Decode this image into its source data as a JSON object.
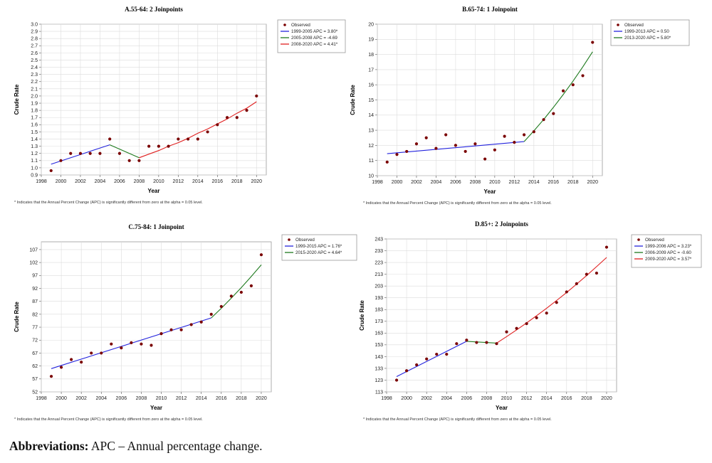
{
  "chart_data": [
    {
      "type": "line",
      "title": "A.55-64: 2 Joinpoints",
      "xlabel": "Year",
      "ylabel": "Crude Rate",
      "xlim": [
        1998,
        2021
      ],
      "ylim": [
        0.9,
        3.0
      ],
      "xticks": [
        1998,
        2000,
        2002,
        2004,
        2006,
        2008,
        2010,
        2012,
        2014,
        2016,
        2018,
        2020
      ],
      "yticks": [
        0.9,
        1,
        1.1,
        1.2,
        1.3,
        1.4,
        1.5,
        1.6,
        1.7,
        1.8,
        1.9,
        2,
        2.1,
        2.2,
        2.3,
        2.4,
        2.5,
        2.6,
        2.7,
        2.8,
        2.9,
        3
      ],
      "ytick_decimals": 1,
      "grid": true,
      "legend_position": "right",
      "note": "* Indicates that the Annual Percent Change (APC) is significantly different from zero at the alpha = 0.05 level.",
      "observed": {
        "name": "Observed",
        "color": "#7a0000",
        "x": [
          1999,
          2000,
          2001,
          2002,
          2003,
          2004,
          2005,
          2006,
          2007,
          2008,
          2009,
          2010,
          2011,
          2012,
          2013,
          2014,
          2015,
          2016,
          2017,
          2018,
          2019,
          2020
        ],
        "y": [
          0.96,
          1.1,
          1.2,
          1.2,
          1.2,
          1.2,
          1.4,
          1.2,
          1.1,
          1.1,
          1.3,
          1.3,
          1.3,
          1.4,
          1.4,
          1.4,
          1.5,
          1.6,
          1.7,
          1.7,
          1.8,
          2.0
        ]
      },
      "series": [
        {
          "name": "1999-2005 APC = 3.80*",
          "color": "#2222dd",
          "x": [
            1999,
            2005
          ],
          "y": [
            1.05,
            1.32
          ]
        },
        {
          "name": "2005-2008 APC = -4.69",
          "color": "#1e7a1e",
          "x": [
            2005,
            2008
          ],
          "y": [
            1.32,
            1.14
          ]
        },
        {
          "name": "2008-2020 APC = 4.41*",
          "color": "#e02020",
          "x": [
            2008,
            2009,
            2010,
            2011,
            2012,
            2013,
            2014,
            2015,
            2016,
            2017,
            2018,
            2019,
            2020
          ],
          "y": [
            1.14,
            1.19,
            1.24,
            1.3,
            1.35,
            1.41,
            1.48,
            1.54,
            1.61,
            1.68,
            1.76,
            1.83,
            1.92
          ]
        }
      ]
    },
    {
      "type": "line",
      "title": "B.65-74: 1 Joinpoint",
      "xlabel": "Year",
      "ylabel": "Crude Rate",
      "xlim": [
        1998,
        2021
      ],
      "ylim": [
        10,
        20
      ],
      "xticks": [
        1998,
        2000,
        2002,
        2004,
        2006,
        2008,
        2010,
        2012,
        2014,
        2016,
        2018,
        2020
      ],
      "yticks": [
        10,
        11,
        12,
        13,
        14,
        15,
        16,
        17,
        18,
        19,
        20
      ],
      "ytick_decimals": 0,
      "grid": true,
      "legend_position": "right",
      "note": "* Indicates that the Annual Percent Change (APC) is significantly different from zero at the alpha = 0.05 level.",
      "observed": {
        "name": "Observed",
        "color": "#7a0000",
        "x": [
          1999,
          2000,
          2001,
          2002,
          2003,
          2004,
          2005,
          2006,
          2007,
          2008,
          2009,
          2010,
          2011,
          2012,
          2013,
          2014,
          2015,
          2016,
          2017,
          2018,
          2019,
          2020
        ],
        "y": [
          10.9,
          11.4,
          11.6,
          12.1,
          12.5,
          11.8,
          12.7,
          12.0,
          11.6,
          12.1,
          11.1,
          11.7,
          12.6,
          12.2,
          12.7,
          12.9,
          13.7,
          14.1,
          15.6,
          16.0,
          16.6,
          18.8
        ]
      },
      "series": [
        {
          "name": "1999-2013 APC = 0.50",
          "color": "#2222dd",
          "x": [
            1999,
            2013
          ],
          "y": [
            11.45,
            12.25
          ]
        },
        {
          "name": "2013-2020 APC = 5.80*",
          "color": "#1e7a1e",
          "x": [
            2013,
            2014,
            2015,
            2016,
            2017,
            2018,
            2019,
            2020
          ],
          "y": [
            12.25,
            12.96,
            13.71,
            14.51,
            15.35,
            16.24,
            17.18,
            18.18
          ]
        }
      ]
    },
    {
      "type": "line",
      "title": "C.75-84: 1 Joinpoint",
      "xlabel": "Year",
      "ylabel": "Crude Rate",
      "xlim": [
        1998,
        2021
      ],
      "ylim": [
        52,
        110
      ],
      "xticks": [
        1998,
        2000,
        2002,
        2004,
        2006,
        2008,
        2010,
        2012,
        2014,
        2016,
        2018,
        2020
      ],
      "yticks": [
        52,
        57,
        62,
        67,
        72,
        77,
        82,
        87,
        92,
        97,
        102,
        107
      ],
      "ytick_decimals": 0,
      "grid": true,
      "legend_position": "right",
      "note": "* Indicates that the Annual Percent Change (APC) is significantly different from zero at the alpha = 0.05 level.",
      "observed": {
        "name": "Observed",
        "color": "#7a0000",
        "x": [
          1999,
          2000,
          2001,
          2002,
          2003,
          2004,
          2005,
          2006,
          2007,
          2008,
          2009,
          2010,
          2011,
          2012,
          2013,
          2014,
          2015,
          2016,
          2017,
          2018,
          2019,
          2020
        ],
        "y": [
          58,
          61.5,
          64.5,
          63.5,
          67,
          67,
          70.5,
          69,
          71,
          70.5,
          70,
          74.5,
          76,
          76,
          78,
          79,
          82,
          85,
          89,
          90.5,
          93,
          105
        ]
      },
      "series": [
        {
          "name": "1999-2015 APC = 1.76*",
          "color": "#2222dd",
          "x": [
            1999,
            2015
          ],
          "y": [
            61,
            80.6
          ]
        },
        {
          "name": "2015-2020 APC = 4.64*",
          "color": "#1e7a1e",
          "x": [
            2015,
            2016,
            2017,
            2018,
            2019,
            2020
          ],
          "y": [
            80.6,
            84.3,
            88.2,
            92.3,
            96.6,
            101.1
          ]
        }
      ]
    },
    {
      "type": "line",
      "title": "D.85+: 2 Joinpoints",
      "xlabel": "Year",
      "ylabel": "Crude Rate",
      "xlim": [
        1998,
        2021
      ],
      "ylim": [
        113,
        243
      ],
      "xticks": [
        1998,
        2000,
        2002,
        2004,
        2006,
        2008,
        2010,
        2012,
        2014,
        2016,
        2018,
        2020
      ],
      "yticks": [
        113,
        123,
        133,
        143,
        153,
        163,
        173,
        183,
        193,
        203,
        213,
        223,
        233,
        243
      ],
      "ytick_decimals": 0,
      "grid": true,
      "legend_position": "right",
      "note": "* Indicates that the Annual Percent Change (APC) is significantly different from zero at the alpha = 0.05 level.",
      "observed": {
        "name": "Observed",
        "color": "#7a0000",
        "x": [
          1999,
          2000,
          2001,
          2002,
          2003,
          2004,
          2005,
          2006,
          2007,
          2008,
          2009,
          2010,
          2011,
          2012,
          2013,
          2014,
          2015,
          2016,
          2017,
          2018,
          2019,
          2020
        ],
        "y": [
          123,
          131,
          136,
          141,
          145,
          145,
          154,
          157,
          155,
          155,
          154,
          164,
          167,
          171,
          176,
          180,
          189,
          198,
          205,
          213,
          214,
          236
        ]
      },
      "series": [
        {
          "name": "1999-2006 APC = 3.23*",
          "color": "#2222dd",
          "x": [
            1999,
            2006
          ],
          "y": [
            126,
            156
          ]
        },
        {
          "name": "2006-2009 APC = -0.60",
          "color": "#1e7a1e",
          "x": [
            2006,
            2009
          ],
          "y": [
            156,
            154.5
          ]
        },
        {
          "name": "2009-2020 APC = 3.57*",
          "color": "#e02020",
          "x": [
            2009,
            2010,
            2011,
            2012,
            2013,
            2014,
            2015,
            2016,
            2017,
            2018,
            2019,
            2020
          ],
          "y": [
            154.5,
            160,
            165.7,
            171.6,
            177.8,
            184.1,
            190.7,
            197.5,
            204.6,
            211.9,
            219.5,
            227.3
          ]
        }
      ]
    }
  ],
  "footer": {
    "label": "Abbreviations:",
    "text": " APC – Annual percentage change."
  }
}
